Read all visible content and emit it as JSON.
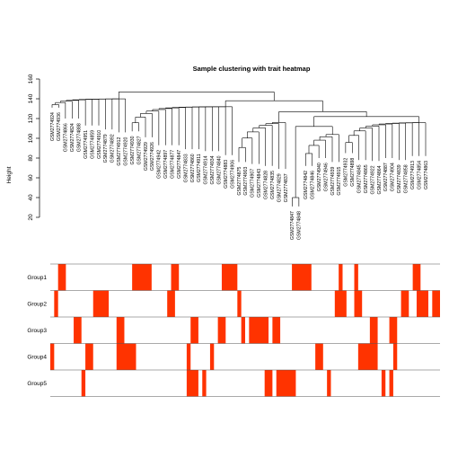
{
  "chart_data": {
    "type": "heatmap",
    "title": "Sample clustering with trait heatmap",
    "ylabel": "Height",
    "ylim": [
      20,
      160
    ],
    "yticks": [
      20,
      40,
      60,
      80,
      100,
      120,
      140,
      160
    ],
    "fill_color": "#ff3300",
    "samples": [
      "GSM2774924",
      "GSM2774936",
      "GSM2774866",
      "GSM2774824",
      "GSM2774888",
      "GSM2774951",
      "GSM2774859",
      "GSM2774910",
      "GSM2774879",
      "GSM2774892",
      "GSM2774912",
      "GSM2774920",
      "GSM2774930",
      "GSM2774827",
      "GSM2774929",
      "GSM2774926",
      "GSM2774942",
      "GSM2774897",
      "GSM2774877",
      "GSM2774847",
      "GSM2774833",
      "GSM2774860",
      "GSM2774911",
      "GSM2774914",
      "GSM2774934",
      "GSM2774840",
      "GSM2774883",
      "GSM2774906",
      "GSM2774875",
      "GSM2774903",
      "GSM2774907",
      "GSM2774843",
      "GSM2774828",
      "GSM2774835",
      "GSM2774829",
      "GSM2774837",
      "GSM2774847",
      "GSM2774848",
      "GSM2774842",
      "GSM2774846",
      "GSM2774940",
      "GSM2774946",
      "GSM2774939",
      "GSM2774915",
      "GSM2774932",
      "GSM2774898",
      "GSM2774845",
      "GSM2774865",
      "GSM2774922",
      "GSM2774864",
      "GSM2774887",
      "GSM2774904",
      "GSM2774839",
      "GSM2774858",
      "GSM2774913",
      "GSM2774854",
      "GSM2774863"
    ],
    "sample_heights": [
      129,
      129,
      118,
      118,
      118,
      111,
      111,
      111,
      107,
      107,
      104,
      104,
      105,
      105,
      99,
      99,
      91,
      91,
      91,
      91,
      87,
      87,
      87,
      85,
      85,
      85,
      81,
      81,
      74,
      74,
      72,
      72,
      70,
      70,
      67,
      67,
      29,
      29,
      70,
      70,
      78,
      78,
      74,
      74,
      83,
      83,
      76,
      76,
      75,
      75,
      78,
      78,
      76,
      76,
      80,
      80,
      80
    ],
    "groups": [
      {
        "name": "Group1",
        "segments": [
          [
            0.02,
            0.04
          ],
          [
            0.21,
            0.26
          ],
          [
            0.31,
            0.33
          ],
          [
            0.44,
            0.48
          ],
          [
            0.62,
            0.67
          ],
          [
            0.74,
            0.75
          ],
          [
            0.78,
            0.79
          ],
          [
            0.93,
            0.95
          ]
        ]
      },
      {
        "name": "Group2",
        "segments": [
          [
            0.01,
            0.02
          ],
          [
            0.11,
            0.15
          ],
          [
            0.3,
            0.32
          ],
          [
            0.48,
            0.49
          ],
          [
            0.73,
            0.76
          ],
          [
            0.78,
            0.8
          ],
          [
            0.9,
            0.92
          ],
          [
            0.94,
            0.97
          ],
          [
            0.98,
            1.0
          ]
        ]
      },
      {
        "name": "Group3",
        "segments": [
          [
            0.06,
            0.08
          ],
          [
            0.17,
            0.19
          ],
          [
            0.36,
            0.38
          ],
          [
            0.43,
            0.45
          ],
          [
            0.49,
            0.5
          ],
          [
            0.51,
            0.56
          ],
          [
            0.57,
            0.59
          ],
          [
            0.82,
            0.84
          ],
          [
            0.87,
            0.89
          ]
        ]
      },
      {
        "name": "Group4",
        "segments": [
          [
            0.0,
            0.01
          ],
          [
            0.09,
            0.11
          ],
          [
            0.17,
            0.22
          ],
          [
            0.35,
            0.36
          ],
          [
            0.41,
            0.42
          ],
          [
            0.68,
            0.7
          ],
          [
            0.79,
            0.84
          ],
          [
            0.88,
            0.89
          ]
        ]
      },
      {
        "name": "Group5",
        "segments": [
          [
            0.08,
            0.09
          ],
          [
            0.35,
            0.38
          ],
          [
            0.39,
            0.4
          ],
          [
            0.55,
            0.57
          ],
          [
            0.58,
            0.63
          ],
          [
            0.71,
            0.72
          ],
          [
            0.85,
            0.86
          ],
          [
            0.87,
            0.88
          ]
        ]
      }
    ]
  }
}
